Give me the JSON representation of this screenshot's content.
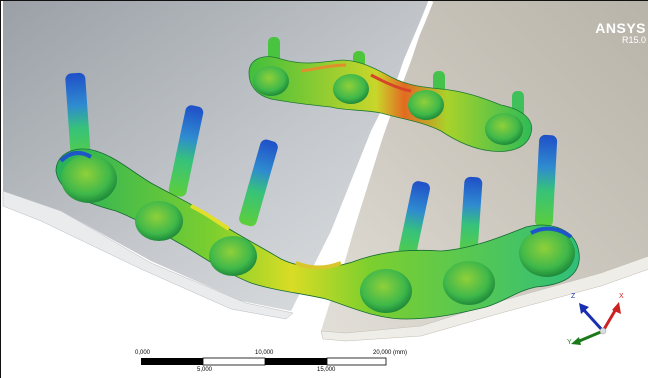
{
  "logo": {
    "brand": "ANSYS",
    "release": "R15.0"
  },
  "scale_bar": {
    "upper_labels": [
      "0,000",
      "10,000",
      "20,000 (mm)"
    ],
    "lower_labels": [
      "5,000",
      "15,000"
    ]
  },
  "triad": {
    "x_label": "X",
    "y_label": "Y",
    "z_label": "Z"
  },
  "colors": {
    "background": "#ffffff",
    "stress_blue": "#1f55c8",
    "stress_green": "#3ec24a",
    "stress_yellow": "#d7dc2a",
    "stress_red": "#d33a1a",
    "axis_x": "#c22",
    "axis_y": "#1a7a1a",
    "axis_z": "#1a2fb0"
  },
  "icons": [
    "ansys-logo",
    "coordinate-triad-icon",
    "scale-bar"
  ]
}
